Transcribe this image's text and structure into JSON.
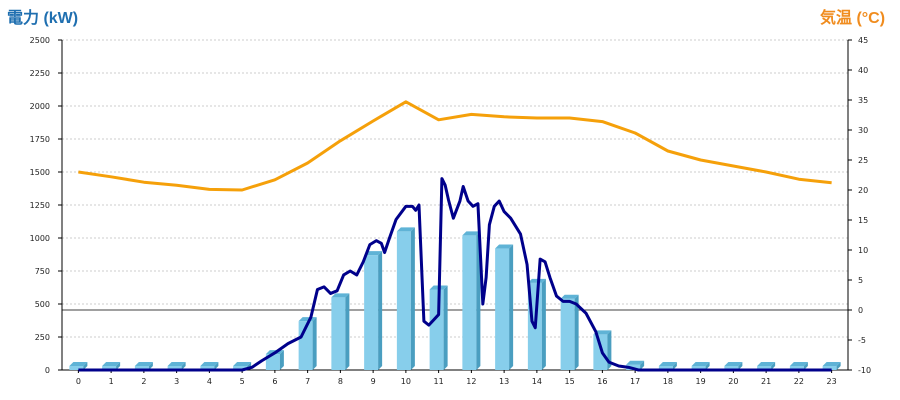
{
  "chart_data": {
    "type": "bar",
    "left_axis_title": "電力 (kW)",
    "right_axis_title": "気温 (°C)",
    "x_categories": [
      "0",
      "1",
      "2",
      "3",
      "4",
      "5",
      "6",
      "7",
      "8",
      "9",
      "10",
      "11",
      "12",
      "13",
      "14",
      "15",
      "16",
      "17",
      "18",
      "19",
      "20",
      "21",
      "22",
      "23"
    ],
    "left_axis": {
      "min": 0,
      "max": 2500,
      "ticks": [
        0,
        250,
        500,
        750,
        1000,
        1250,
        1500,
        1750,
        2000,
        2250,
        2500
      ]
    },
    "right_axis": {
      "min": -10,
      "max": 45,
      "ticks": [
        -10,
        -5,
        0,
        5,
        10,
        15,
        20,
        25,
        30,
        35,
        40,
        45
      ]
    },
    "grid": "horizontal dotted",
    "series": [
      {
        "kind": "bar",
        "axis": "left",
        "color": "#87ceeb",
        "values": [
          0,
          0,
          0,
          0,
          0,
          0,
          120,
          370,
          550,
          870,
          1050,
          610,
          1020,
          920,
          660,
          540,
          270,
          40,
          0,
          0,
          0,
          0,
          0,
          0
        ]
      },
      {
        "kind": "line",
        "axis": "left",
        "color": "#00008b",
        "points": [
          [
            0,
            0
          ],
          [
            1,
            0
          ],
          [
            2,
            0
          ],
          [
            3,
            0
          ],
          [
            4,
            0
          ],
          [
            5,
            0
          ],
          [
            5.3,
            20
          ],
          [
            5.6,
            70
          ],
          [
            6,
            130
          ],
          [
            6.4,
            200
          ],
          [
            6.8,
            250
          ],
          [
            7.1,
            400
          ],
          [
            7.3,
            610
          ],
          [
            7.5,
            630
          ],
          [
            7.7,
            580
          ],
          [
            7.9,
            600
          ],
          [
            8.1,
            720
          ],
          [
            8.3,
            750
          ],
          [
            8.5,
            720
          ],
          [
            8.7,
            820
          ],
          [
            8.9,
            950
          ],
          [
            9.1,
            980
          ],
          [
            9.25,
            960
          ],
          [
            9.35,
            890
          ],
          [
            9.5,
            1000
          ],
          [
            9.7,
            1140
          ],
          [
            10,
            1240
          ],
          [
            10.2,
            1240
          ],
          [
            10.3,
            1210
          ],
          [
            10.4,
            1250
          ],
          [
            10.55,
            370
          ],
          [
            10.7,
            340
          ],
          [
            10.85,
            380
          ],
          [
            11,
            420
          ],
          [
            11.1,
            1450
          ],
          [
            11.2,
            1400
          ],
          [
            11.3,
            1290
          ],
          [
            11.45,
            1150
          ],
          [
            11.65,
            1280
          ],
          [
            11.75,
            1390
          ],
          [
            11.9,
            1280
          ],
          [
            12.05,
            1240
          ],
          [
            12.2,
            1260
          ],
          [
            12.35,
            500
          ],
          [
            12.45,
            700
          ],
          [
            12.55,
            1100
          ],
          [
            12.7,
            1240
          ],
          [
            12.85,
            1280
          ],
          [
            13,
            1200
          ],
          [
            13.2,
            1150
          ],
          [
            13.5,
            1030
          ],
          [
            13.7,
            800
          ],
          [
            13.85,
            370
          ],
          [
            13.95,
            320
          ],
          [
            14.1,
            840
          ],
          [
            14.25,
            820
          ],
          [
            14.4,
            700
          ],
          [
            14.6,
            560
          ],
          [
            14.8,
            520
          ],
          [
            15,
            520
          ],
          [
            15.2,
            500
          ],
          [
            15.5,
            430
          ],
          [
            15.8,
            290
          ],
          [
            16,
            130
          ],
          [
            16.2,
            60
          ],
          [
            16.5,
            30
          ],
          [
            16.8,
            20
          ],
          [
            17.1,
            0
          ],
          [
            18,
            0
          ],
          [
            19,
            0
          ],
          [
            20,
            0
          ],
          [
            21,
            0
          ],
          [
            22,
            0
          ],
          [
            23,
            0
          ]
        ]
      },
      {
        "kind": "line",
        "axis": "right",
        "color": "#f5a00a",
        "values": [
          23,
          22.2,
          21.3,
          20.8,
          20.1,
          20,
          21.7,
          24.5,
          28.2,
          31.5,
          34.7,
          31.7,
          32.6,
          32.2,
          32,
          32,
          31.4,
          29.5,
          26.5,
          25,
          24,
          23,
          21.8,
          21.2
        ]
      }
    ]
  }
}
